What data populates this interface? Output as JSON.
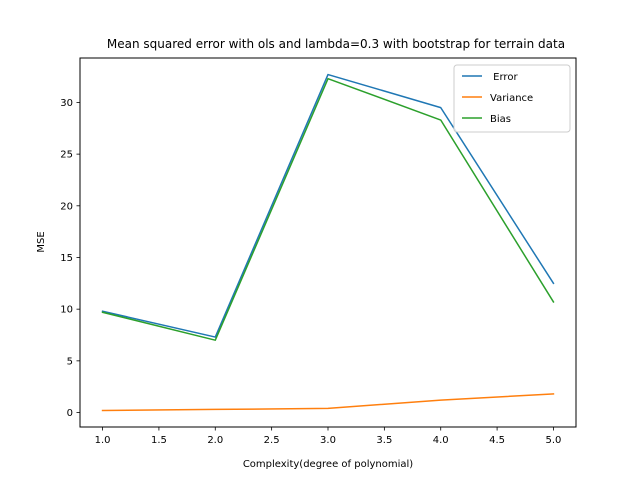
{
  "chart_data": {
    "type": "line",
    "title": "Mean squared error with ols and lambda=0.3 with bootstrap for terrain data",
    "xlabel": "Complexity(degree of polynomial)",
    "ylabel": "MSE",
    "x": [
      1,
      2,
      3,
      4,
      5
    ],
    "xlim": [
      0.8,
      5.2
    ],
    "ylim": [
      -1.4,
      34.3
    ],
    "xticks": [
      1.0,
      1.5,
      2.0,
      2.5,
      3.0,
      3.5,
      4.0,
      4.5,
      5.0
    ],
    "xtick_labels": [
      "1.0",
      "1.5",
      "2.0",
      "2.5",
      "3.0",
      "3.5",
      "4.0",
      "4.5",
      "5.0"
    ],
    "yticks": [
      0,
      5,
      10,
      15,
      20,
      25,
      30
    ],
    "ytick_labels": [
      "0",
      "5",
      "10",
      "15",
      "20",
      "25",
      "30"
    ],
    "grid": false,
    "legend_position": "top-right",
    "series": [
      {
        "name": " Error",
        "color": "#1f77b4",
        "values": [
          9.8,
          7.3,
          32.7,
          29.5,
          12.5
        ]
      },
      {
        "name": "Variance",
        "color": "#ff7f0e",
        "values": [
          0.2,
          0.3,
          0.4,
          1.2,
          1.8
        ]
      },
      {
        "name": "Bias",
        "color": "#2ca02c",
        "values": [
          9.7,
          7.0,
          32.3,
          28.3,
          10.7
        ]
      }
    ]
  }
}
